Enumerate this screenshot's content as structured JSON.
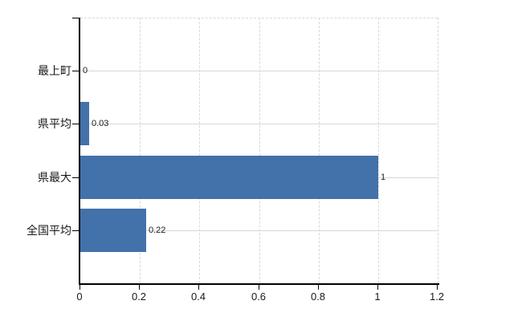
{
  "chart_data": {
    "type": "bar",
    "orientation": "horizontal",
    "title": "",
    "xlabel": "",
    "ylabel": "",
    "categories": [
      "最上町",
      "県平均",
      "県最大",
      "全国平均"
    ],
    "values": [
      0,
      0.03,
      1,
      0.22
    ],
    "value_labels": [
      "0",
      "0.03",
      "1",
      "0.22"
    ],
    "xlim": [
      0,
      1.2
    ],
    "x_ticks": [
      0,
      0.2,
      0.4,
      0.6,
      0.8,
      1,
      1.2
    ],
    "x_tick_labels": [
      "0",
      "0.2",
      "0.4",
      "0.6",
      "0.8",
      "1",
      "1.2"
    ],
    "grid": true,
    "legend": false,
    "colors": {
      "bar": "#4371aa",
      "axis": "#000000",
      "grid_horizontal": "#d5dbd1",
      "grid_vertical": "#d9d8dd",
      "text": "#1a1a1a",
      "background": "#ffffff"
    }
  }
}
